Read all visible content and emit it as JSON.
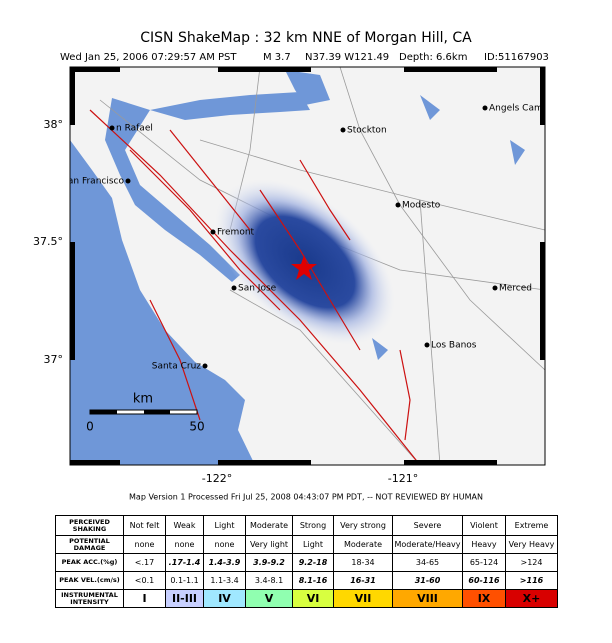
{
  "header": {
    "title": "CISN ShakeMap :  32 km NNE of Morgan Hill, CA",
    "subtitle": [
      "Wed Jan 25, 2006 07:29:57 AM PST",
      "M 3.7",
      "N37.39 W121.49",
      "Depth: 6.6km",
      "ID:51167903"
    ]
  },
  "map": {
    "cities": [
      {
        "name": "n Rafael"
      },
      {
        "name": "an Francisco"
      },
      {
        "name": "Stockton"
      },
      {
        "name": "Angels Cam"
      },
      {
        "name": "Modesto"
      },
      {
        "name": "Fremont"
      },
      {
        "name": "San Jose"
      },
      {
        "name": "Merced"
      },
      {
        "name": "Los Banos"
      },
      {
        "name": "Santa Cruz"
      }
    ],
    "lat_labels": [
      "38°",
      "37.5°",
      "37°"
    ],
    "lon_labels": [
      "-122°",
      "-121°"
    ],
    "scale": {
      "unit": "km",
      "labels": [
        "0",
        "50"
      ]
    }
  },
  "footer": "Map Version 1 Processed Fri Jul 25, 2008 04:43:07 PM PDT, -- NOT REVIEWED BY HUMAN",
  "table": {
    "rows": [
      {
        "label": [
          "PERCEIVED",
          "SHAKING"
        ],
        "cells": [
          "Not felt",
          "Weak",
          "Light",
          "Moderate",
          "Strong",
          "Very strong",
          "Severe",
          "Violent",
          "Extreme"
        ]
      },
      {
        "label": [
          "POTENTIAL",
          "DAMAGE"
        ],
        "cells": [
          "none",
          "none",
          "none",
          "Very light",
          "Light",
          "Moderate",
          "Moderate/Heavy",
          "Heavy",
          "Very Heavy"
        ]
      },
      {
        "label": [
          "PEAK ACC.(%g)"
        ],
        "cells": [
          "<.17",
          ".17-1.4",
          "1.4-3.9",
          "3.9-9.2",
          "9.2-18",
          "18-34",
          "34-65",
          "65-124",
          ">124"
        ]
      },
      {
        "label": [
          "PEAK VEL.(cm/s)"
        ],
        "cells": [
          "<0.1",
          "0.1-1.1",
          "1.1-3.4",
          "3.4-8.1",
          "8.1-16",
          "16-31",
          "31-60",
          "60-116",
          ">116"
        ]
      },
      {
        "label": [
          "INSTRUMENTAL",
          "INTENSITY"
        ],
        "cells": [
          "I",
          "II-III",
          "IV",
          "V",
          "VI",
          "VII",
          "VIII",
          "IX",
          "X+"
        ]
      }
    ],
    "intensity_colors": [
      "#ffffff",
      "#c8d0ff",
      "#a0e8ff",
      "#90ffb0",
      "#d8ff40",
      "#ffd800",
      "#ffa800",
      "#ff5000",
      "#d80000"
    ]
  }
}
